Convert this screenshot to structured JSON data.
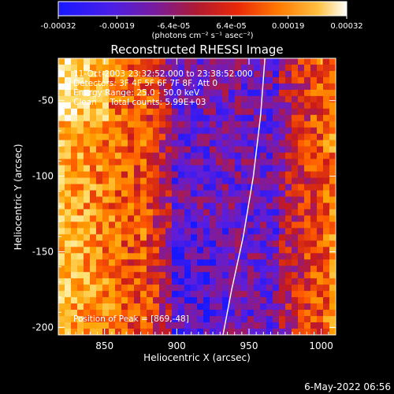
{
  "chart_data": {
    "type": "heatmap",
    "title": "Reconstructed RHESSI Image",
    "xlabel": "Heliocentric X (arcsec)",
    "ylabel": "Heliocentric Y (arcsec)",
    "xlim": [
      818,
      1010
    ],
    "ylim": [
      -205,
      -22
    ],
    "x_ticks": [
      850,
      900,
      950,
      1000
    ],
    "y_ticks": [
      -50,
      -100,
      -150,
      -200
    ],
    "colorbar": {
      "label": "(photons cm⁻² s⁻¹ asec⁻²)",
      "range": [
        -0.00032,
        0.00032
      ],
      "ticks": [
        "-0.00032",
        "-0.00019",
        "-6.4e-05",
        "6.4e-05",
        "0.00019",
        "0.00032"
      ],
      "colors": [
        "#1818ff",
        "#5a1ee0",
        "#8a1a8a",
        "#c81a1a",
        "#ff5a00",
        "#ffa000",
        "#ffe070",
        "#ffffff"
      ]
    },
    "annotations": [
      "11-Oct-2003 23:32:52.000 to 23:38:52.000",
      "Detectors: 3F 4F 5F 6F 7F 8F, Att 0",
      "Energy Range: 25.0 - 50.0 keV",
      "Clean     Total counts: 5.99E+03"
    ],
    "peak_label": "Position of Peak = [869,-48]",
    "limb_curve": [
      [
        961,
        -22
      ],
      [
        958,
        -60
      ],
      [
        953,
        -100
      ],
      [
        946,
        -140
      ],
      [
        938,
        -175
      ],
      [
        932,
        -205
      ]
    ]
  },
  "footer": {
    "date": "6-May-2022 06:56"
  }
}
